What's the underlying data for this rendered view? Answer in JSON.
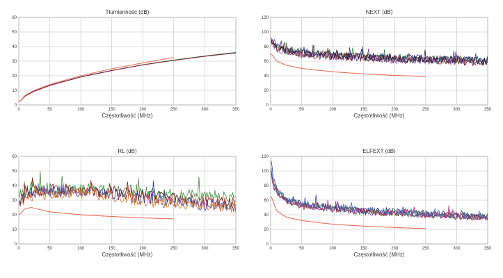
{
  "colors": {
    "limit": "#e8705c",
    "measured": [
      "#2f3a94",
      "#3a8f3a",
      "#8a1a1a",
      "#7b2f90",
      "#d9722a",
      "#3d5fb8",
      "#c23a8a",
      "#1e1e3a"
    ],
    "grid": "#bfbfbf",
    "axis": "#999999"
  },
  "chart_data": [
    {
      "type": "line",
      "title": "Tłumienność (dB)",
      "xlabel": "Częstotliwość (MHz)",
      "ylabel": "",
      "xlim": [
        0,
        350
      ],
      "ylim": [
        0,
        60
      ],
      "x_ticks": [
        0,
        50,
        100,
        150,
        200,
        250,
        300,
        350
      ],
      "y_ticks": [
        0,
        10,
        20,
        30,
        40,
        50,
        60
      ],
      "grid": true,
      "series": [
        {
          "kind": "limit",
          "color": "#e8705c",
          "x": [
            1,
            10,
            25,
            50,
            100,
            150,
            200,
            250
          ],
          "y": [
            2.2,
            6.5,
            10,
            14,
            20,
            24.8,
            28.8,
            32.5
          ]
        },
        {
          "kind": "measured",
          "color": "#3a8f3a",
          "x": [
            1,
            10,
            25,
            50,
            100,
            150,
            200,
            250,
            300,
            350
          ],
          "y": [
            2.0,
            6.0,
            9.4,
            13.4,
            19.2,
            23.6,
            27.6,
            30.8,
            33.6,
            36.0
          ]
        },
        {
          "kind": "measured",
          "color": "#2f3a94",
          "x": [
            1,
            10,
            25,
            50,
            100,
            150,
            200,
            250,
            300,
            350
          ],
          "y": [
            2.1,
            6.1,
            9.5,
            13.5,
            19.3,
            23.7,
            27.5,
            30.6,
            33.4,
            35.8
          ]
        },
        {
          "kind": "measured",
          "color": "#8a1a1a",
          "x": [
            1,
            10,
            25,
            50,
            100,
            150,
            200,
            250,
            300,
            350
          ],
          "y": [
            2.0,
            6.0,
            9.3,
            13.3,
            19.1,
            23.5,
            27.4,
            30.5,
            33.3,
            35.6
          ]
        }
      ]
    },
    {
      "type": "line",
      "title": "NEXT (dB)",
      "xlabel": "Częstotliwość (MHz)",
      "ylabel": "",
      "xlim": [
        0,
        350
      ],
      "ylim": [
        0,
        120
      ],
      "x_ticks": [
        0,
        50,
        100,
        150,
        200,
        250,
        300,
        350
      ],
      "y_ticks": [
        0,
        20,
        40,
        60,
        80,
        100,
        120
      ],
      "grid": true,
      "series": [
        {
          "kind": "limit",
          "color": "#e8705c",
          "x": [
            1,
            10,
            25,
            50,
            100,
            150,
            200,
            250
          ],
          "y": [
            70,
            60,
            54.5,
            50,
            45.5,
            42.5,
            40.5,
            39
          ]
        },
        {
          "kind": "measured",
          "noise": 8,
          "seed": 11,
          "color": "#2f3a94",
          "x": [
            1,
            10,
            25,
            50,
            100,
            150,
            200,
            250,
            300,
            350
          ],
          "y": [
            88,
            80,
            75,
            72,
            68,
            66,
            64,
            63,
            62,
            60
          ]
        },
        {
          "kind": "measured",
          "noise": 8,
          "seed": 23,
          "color": "#3a8f3a",
          "x": [
            1,
            10,
            25,
            50,
            100,
            150,
            200,
            250,
            300,
            350
          ],
          "y": [
            86,
            79,
            74,
            71,
            68,
            66,
            64,
            62,
            61,
            59
          ]
        },
        {
          "kind": "measured",
          "noise": 8,
          "seed": 37,
          "color": "#8a1a1a",
          "x": [
            1,
            10,
            25,
            50,
            100,
            150,
            200,
            250,
            300,
            350
          ],
          "y": [
            87,
            78,
            73,
            70,
            67,
            65,
            63,
            62,
            60,
            58
          ]
        },
        {
          "kind": "measured",
          "noise": 8,
          "seed": 41,
          "color": "#7b2f90",
          "x": [
            1,
            10,
            25,
            50,
            100,
            150,
            200,
            250,
            300,
            350
          ],
          "y": [
            85,
            77,
            72,
            69,
            66,
            64,
            62,
            61,
            60,
            58
          ]
        },
        {
          "kind": "measured",
          "noise": 8,
          "seed": 53,
          "color": "#1e1e3a",
          "x": [
            1,
            10,
            25,
            50,
            100,
            150,
            200,
            250,
            300,
            350
          ],
          "y": [
            90,
            81,
            75,
            72,
            68,
            66,
            64,
            63,
            62,
            60
          ]
        }
      ]
    },
    {
      "type": "line",
      "title": "RL (dB)",
      "xlabel": "Częstotliwość (MHz)",
      "ylabel": "",
      "xlim": [
        0,
        350
      ],
      "ylim": [
        0,
        60
      ],
      "x_ticks": [
        0,
        50,
        100,
        150,
        200,
        250,
        300,
        350
      ],
      "y_ticks": [
        0,
        10,
        20,
        30,
        40,
        50,
        60
      ],
      "grid": true,
      "series": [
        {
          "kind": "limit",
          "color": "#e8705c",
          "x": [
            1,
            5,
            10,
            20,
            50,
            100,
            150,
            200,
            250
          ],
          "y": [
            20,
            22,
            24,
            25,
            22,
            20,
            18.8,
            17.8,
            17.2
          ]
        },
        {
          "kind": "measured",
          "noise": 6,
          "seed": 7,
          "color": "#3a8f3a",
          "x": [
            1,
            10,
            25,
            50,
            100,
            150,
            200,
            250,
            300,
            350
          ],
          "y": [
            30,
            36,
            38,
            38,
            38,
            37,
            35,
            34,
            33,
            32
          ]
        },
        {
          "kind": "measured",
          "noise": 6,
          "seed": 19,
          "color": "#8a1a1a",
          "x": [
            1,
            10,
            25,
            50,
            100,
            150,
            200,
            250,
            300,
            350
          ],
          "y": [
            28,
            34,
            36,
            37,
            37,
            36,
            33,
            31,
            29,
            28
          ]
        },
        {
          "kind": "measured",
          "noise": 6,
          "seed": 29,
          "color": "#2f3a94",
          "x": [
            1,
            10,
            25,
            50,
            100,
            150,
            200,
            250,
            300,
            350
          ],
          "y": [
            27,
            33,
            35,
            36,
            36,
            34,
            31,
            29,
            27,
            26
          ]
        },
        {
          "kind": "measured",
          "noise": 6,
          "seed": 31,
          "color": "#d9722a",
          "x": [
            1,
            10,
            25,
            50,
            100,
            150,
            200,
            250,
            300,
            350
          ],
          "y": [
            26,
            32,
            34,
            35,
            35,
            33,
            30,
            28,
            26,
            25
          ]
        }
      ]
    },
    {
      "type": "line",
      "title": "ELFEXT (dB)",
      "xlabel": "Częstotliwość (MHz)",
      "ylabel": "",
      "xlim": [
        0,
        350
      ],
      "ylim": [
        0,
        120
      ],
      "x_ticks": [
        0,
        50,
        100,
        150,
        200,
        250,
        300,
        350
      ],
      "y_ticks": [
        0,
        20,
        40,
        60,
        80,
        100,
        120
      ],
      "grid": true,
      "series": [
        {
          "kind": "limit",
          "color": "#e8705c",
          "x": [
            1,
            10,
            25,
            50,
            100,
            150,
            200,
            250
          ],
          "y": [
            65,
            45,
            37,
            32,
            27,
            24.5,
            22.5,
            21
          ]
        },
        {
          "kind": "measured",
          "noise": 7,
          "seed": 5,
          "color": "#2f3a94",
          "x": [
            1,
            5,
            10,
            25,
            50,
            100,
            150,
            200,
            250,
            300,
            350
          ],
          "y": [
            110,
            88,
            75,
            62,
            55,
            50,
            46,
            44,
            42,
            40,
            38
          ]
        },
        {
          "kind": "measured",
          "noise": 7,
          "seed": 13,
          "color": "#3a8f3a",
          "x": [
            1,
            5,
            10,
            25,
            50,
            100,
            150,
            200,
            250,
            300,
            350
          ],
          "y": [
            100,
            82,
            72,
            60,
            54,
            49,
            45,
            43,
            41,
            39,
            37
          ]
        },
        {
          "kind": "measured",
          "noise": 7,
          "seed": 17,
          "color": "#8a1a1a",
          "x": [
            1,
            5,
            10,
            25,
            50,
            100,
            150,
            200,
            250,
            300,
            350
          ],
          "y": [
            96,
            80,
            70,
            58,
            52,
            48,
            44,
            42,
            40,
            38,
            36
          ]
        },
        {
          "kind": "measured",
          "noise": 7,
          "seed": 43,
          "color": "#c23a8a",
          "x": [
            1,
            5,
            10,
            25,
            50,
            100,
            150,
            200,
            250,
            300,
            350
          ],
          "y": [
            98,
            81,
            71,
            59,
            53,
            48,
            45,
            42,
            40,
            38,
            36
          ]
        },
        {
          "kind": "measured",
          "noise": 7,
          "seed": 47,
          "color": "#3d5fb8",
          "x": [
            1,
            5,
            10,
            25,
            50,
            100,
            150,
            200,
            250,
            300,
            350
          ],
          "y": [
            104,
            85,
            73,
            61,
            54,
            49,
            46,
            43,
            41,
            39,
            37
          ]
        }
      ]
    }
  ]
}
